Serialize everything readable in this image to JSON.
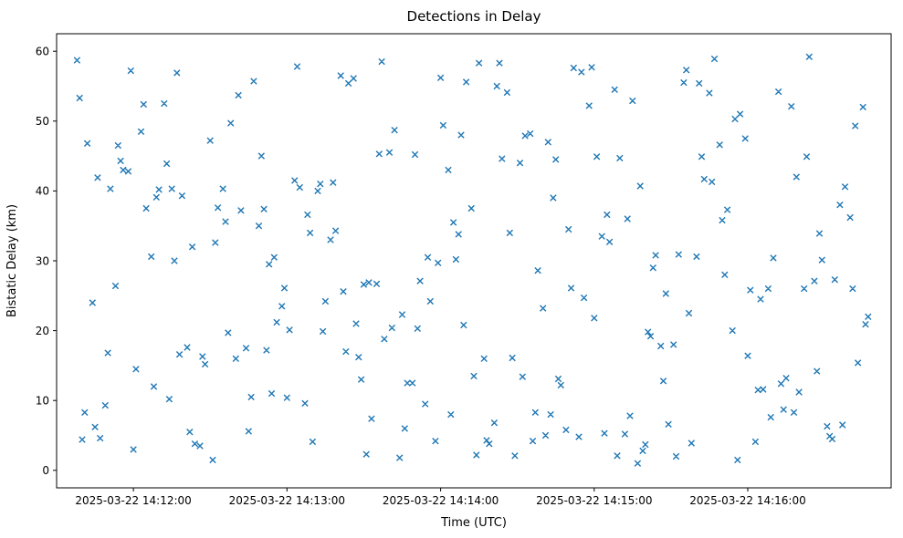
{
  "chart_data": {
    "type": "scatter",
    "title": "Detections in Delay",
    "xlabel": "Time (UTC)",
    "ylabel": "Bistatic Delay (km)",
    "marker": "x",
    "marker_color": "#1f77b4",
    "grid": false,
    "legend": "none",
    "x_unit": "seconds after 2025-03-22 14:11:00 UTC",
    "xlim": [
      30,
      356
    ],
    "ylim": [
      -2.5,
      62.5
    ],
    "x_ticks": [
      {
        "t": 60,
        "label": "2025-03-22 14:12:00"
      },
      {
        "t": 120,
        "label": "2025-03-22 14:13:00"
      },
      {
        "t": 180,
        "label": "2025-03-22 14:14:00"
      },
      {
        "t": 240,
        "label": "2025-03-22 14:15:00"
      },
      {
        "t": 300,
        "label": "2025-03-22 14:16:00"
      }
    ],
    "y_ticks": [
      0,
      10,
      20,
      30,
      40,
      50,
      60
    ],
    "points": [
      [
        38,
        58.7
      ],
      [
        75,
        40.3
      ],
      [
        112,
        17.2
      ],
      [
        149,
        13.0
      ],
      [
        186,
        30.2
      ],
      [
        223,
        8.0
      ],
      [
        260,
        3.7
      ],
      [
        297,
        51.0
      ],
      [
        334,
        27.3
      ],
      [
        61,
        14.5
      ],
      [
        98,
        49.7
      ],
      [
        135,
        24.2
      ],
      [
        172,
        27.1
      ],
      [
        209,
        2.1
      ],
      [
        246,
        32.7
      ],
      [
        283,
        41.7
      ],
      [
        320,
        11.2
      ],
      [
        47,
        4.6
      ],
      [
        84,
        3.8
      ],
      [
        121,
        20.1
      ],
      [
        158,
        18.8
      ],
      [
        195,
        58.3
      ],
      [
        232,
        57.6
      ],
      [
        269,
        6.6
      ],
      [
        306,
        11.6
      ],
      [
        343,
        15.4
      ],
      [
        70,
        40.2
      ],
      [
        107,
        55.7
      ],
      [
        144,
        55.4
      ],
      [
        181,
        49.4
      ],
      [
        218,
        28.6
      ],
      [
        255,
        52.9
      ],
      [
        292,
        37.3
      ],
      [
        329,
        30.1
      ],
      [
        56,
        43.0
      ],
      [
        93,
        37.6
      ],
      [
        130,
        4.1
      ],
      [
        167,
        12.5
      ],
      [
        204,
        44.6
      ],
      [
        241,
        44.9
      ],
      [
        278,
        3.9
      ],
      [
        315,
        13.2
      ],
      [
        42,
        46.8
      ],
      [
        79,
        39.3
      ],
      [
        116,
        21.2
      ],
      [
        153,
        7.4
      ],
      [
        190,
        55.6
      ],
      [
        227,
        12.2
      ],
      [
        264,
        30.8
      ],
      [
        301,
        25.8
      ],
      [
        338,
        40.6
      ],
      [
        65,
        37.5
      ],
      [
        102,
        37.2
      ],
      [
        139,
        34.3
      ],
      [
        176,
        24.2
      ],
      [
        213,
        47.9
      ],
      [
        250,
        44.7
      ],
      [
        287,
        58.9
      ],
      [
        324,
        59.2
      ],
      [
        51,
        40.3
      ],
      [
        88,
        15.2
      ],
      [
        125,
        40.5
      ],
      [
        162,
        48.7
      ],
      [
        199,
        3.8
      ],
      [
        236,
        24.7
      ],
      [
        273,
        30.9
      ],
      [
        310,
        30.4
      ],
      [
        347,
        22.0
      ],
      [
        74,
        10.2
      ],
      [
        111,
        37.4
      ],
      [
        148,
        16.2
      ],
      [
        185,
        35.5
      ],
      [
        222,
        47.0
      ],
      [
        259,
        2.8
      ],
      [
        296,
        1.5
      ],
      [
        333,
        4.5
      ],
      [
        60,
        3.0
      ],
      [
        97,
        19.7
      ],
      [
        134,
        19.9
      ],
      [
        171,
        20.3
      ],
      [
        208,
        16.1
      ],
      [
        245,
        36.6
      ],
      [
        282,
        44.9
      ],
      [
        319,
        42.0
      ],
      [
        46,
        41.9
      ],
      [
        83,
        32.0
      ],
      [
        120,
        10.4
      ],
      [
        157,
        58.5
      ],
      [
        194,
        2.2
      ],
      [
        231,
        26.1
      ],
      [
        268,
        25.3
      ],
      [
        305,
        24.5
      ],
      [
        342,
        49.3
      ],
      [
        69,
        39.1
      ],
      [
        106,
        10.5
      ],
      [
        143,
        17.0
      ],
      [
        180,
        56.2
      ],
      [
        217,
        8.3
      ],
      [
        254,
        7.8
      ],
      [
        291,
        28.0
      ],
      [
        328,
        33.9
      ],
      [
        55,
        44.3
      ],
      [
        92,
        32.6
      ],
      [
        129,
        34.0
      ],
      [
        166,
        6.0
      ],
      [
        203,
        58.3
      ],
      [
        240,
        21.8
      ],
      [
        277,
        22.5
      ],
      [
        314,
        8.7
      ],
      [
        41,
        8.3
      ],
      [
        78,
        16.6
      ],
      [
        115,
        30.5
      ],
      [
        152,
        26.9
      ],
      [
        189,
        20.8
      ],
      [
        226,
        13.1
      ],
      [
        263,
        29.0
      ],
      [
        300,
        16.4
      ],
      [
        337,
        6.5
      ],
      [
        64,
        52.4
      ],
      [
        101,
        53.7
      ],
      [
        138,
        41.2
      ],
      [
        175,
        30.5
      ],
      [
        212,
        13.4
      ],
      [
        249,
        2.1
      ],
      [
        286,
        41.3
      ],
      [
        323,
        44.9
      ],
      [
        50,
        16.8
      ],
      [
        87,
        16.3
      ],
      [
        124,
        57.8
      ],
      [
        161,
        20.4
      ],
      [
        198,
        4.3
      ],
      [
        235,
        57.0
      ],
      [
        272,
        2.0
      ],
      [
        309,
        7.6
      ],
      [
        346,
        20.9
      ],
      [
        73,
        43.9
      ],
      [
        110,
        45.0
      ],
      [
        147,
        21.0
      ],
      [
        184,
        8.0
      ],
      [
        221,
        5.0
      ],
      [
        258,
        40.7
      ],
      [
        295,
        50.3
      ],
      [
        332,
        4.9
      ],
      [
        59,
        57.2
      ],
      [
        96,
        35.6
      ],
      [
        133,
        41.0
      ],
      [
        170,
        45.2
      ],
      [
        207,
        34.0
      ],
      [
        244,
        5.3
      ],
      [
        281,
        55.4
      ],
      [
        318,
        8.3
      ],
      [
        45,
        6.2
      ],
      [
        82,
        5.5
      ],
      [
        119,
        26.1
      ],
      [
        156,
        45.3
      ],
      [
        193,
        13.5
      ],
      [
        230,
        34.5
      ],
      [
        267,
        12.8
      ],
      [
        304,
        11.5
      ],
      [
        341,
        26.0
      ],
      [
        68,
        12.0
      ],
      [
        105,
        5.6
      ],
      [
        142,
        25.6
      ],
      [
        179,
        29.7
      ],
      [
        216,
        4.2
      ],
      [
        253,
        36.0
      ],
      [
        290,
        35.8
      ],
      [
        327,
        14.2
      ],
      [
        54,
        46.5
      ],
      [
        91,
        1.5
      ],
      [
        128,
        36.6
      ],
      [
        165,
        22.3
      ],
      [
        202,
        55.0
      ],
      [
        239,
        57.7
      ],
      [
        276,
        57.3
      ],
      [
        313,
        12.4
      ],
      [
        40,
        4.4
      ],
      [
        77,
        56.9
      ],
      [
        114,
        11.0
      ],
      [
        151,
        2.3
      ],
      [
        188,
        48.0
      ],
      [
        225,
        44.5
      ],
      [
        262,
        19.2
      ],
      [
        299,
        47.5
      ],
      [
        336,
        38.0
      ],
      [
        63,
        48.5
      ],
      [
        100,
        16.0
      ],
      [
        137,
        33.0
      ],
      [
        174,
        9.5
      ],
      [
        211,
        44.0
      ],
      [
        248,
        54.5
      ],
      [
        285,
        54.0
      ],
      [
        322,
        26.0
      ],
      [
        49,
        9.3
      ],
      [
        86,
        3.5
      ],
      [
        123,
        41.5
      ],
      [
        160,
        45.5
      ],
      [
        197,
        16.0
      ],
      [
        234,
        4.8
      ],
      [
        271,
        18.0
      ],
      [
        308,
        26.0
      ],
      [
        345,
        52.0
      ],
      [
        72,
        52.5
      ],
      [
        109,
        35.0
      ],
      [
        146,
        56.1
      ],
      [
        183,
        43.0
      ],
      [
        220,
        23.2
      ],
      [
        257,
        1.0
      ],
      [
        294,
        20.0
      ],
      [
        331,
        6.3
      ],
      [
        58,
        42.8
      ],
      [
        95,
        40.3
      ],
      [
        132,
        40.0
      ],
      [
        169,
        12.5
      ],
      [
        206,
        54.1
      ],
      [
        243,
        33.5
      ],
      [
        280,
        30.6
      ],
      [
        317,
        52.1
      ],
      [
        44,
        24.0
      ],
      [
        81,
        17.6
      ],
      [
        118,
        23.5
      ],
      [
        155,
        26.7
      ],
      [
        192,
        37.5
      ],
      [
        229,
        5.8
      ],
      [
        266,
        17.8
      ],
      [
        303,
        4.1
      ],
      [
        340,
        36.2
      ],
      [
        67,
        30.6
      ],
      [
        104,
        17.5
      ],
      [
        141,
        56.5
      ],
      [
        178,
        4.2
      ],
      [
        215,
        48.2
      ],
      [
        252,
        5.2
      ],
      [
        289,
        46.6
      ],
      [
        326,
        27.1
      ],
      [
        53,
        26.4
      ],
      [
        90,
        47.2
      ],
      [
        127,
        9.6
      ],
      [
        164,
        1.8
      ],
      [
        201,
        6.8
      ],
      [
        238,
        52.2
      ],
      [
        275,
        55.5
      ],
      [
        312,
        54.2
      ],
      [
        39,
        53.3
      ],
      [
        76,
        30.0
      ],
      [
        113,
        29.5
      ],
      [
        150,
        26.6
      ],
      [
        187,
        33.8
      ],
      [
        224,
        39.0
      ],
      [
        261,
        19.8
      ]
    ]
  }
}
